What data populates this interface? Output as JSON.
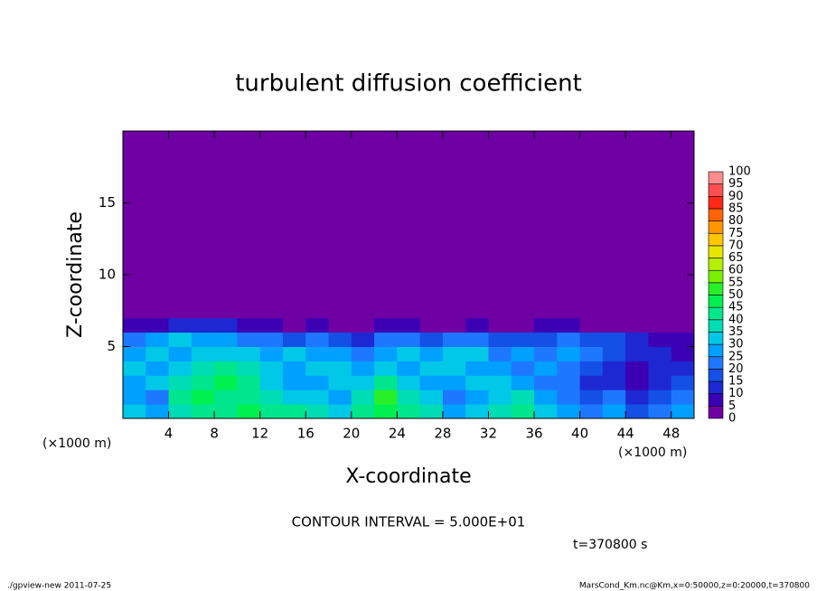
{
  "chart_data": {
    "type": "contour",
    "title": "turbulent diffusion coefficient",
    "x_label": "X-coordinate",
    "y_label": "Z-coordinate",
    "x_unit": "(×1000 m)",
    "y_unit": "(×1000 m)",
    "contour_interval": "CONTOUR INTERVAL = 5.000E+01",
    "time": "t=370800 s",
    "footer_left": "./gpview-new  2011-07-25",
    "footer_right": "MarsCond_Km.nc@Km,x=0:50000,z=0:20000,t=370800",
    "xlim": [
      0,
      50
    ],
    "ylim": [
      0,
      20
    ],
    "xticks": [
      4,
      8,
      12,
      16,
      20,
      24,
      28,
      32,
      36,
      40,
      44,
      48
    ],
    "yticks": [
      5,
      10,
      15
    ],
    "levels": [
      0,
      5,
      10,
      15,
      20,
      25,
      30,
      35,
      40,
      45,
      50,
      55,
      60,
      65,
      70,
      75,
      80,
      85,
      90,
      95,
      100
    ],
    "colors": [
      "#6e00a4",
      "#3c00b4",
      "#1e28d2",
      "#1450e6",
      "#1e78ff",
      "#00a0ff",
      "#00c8e6",
      "#00dcb4",
      "#00e68c",
      "#00f050",
      "#28f028",
      "#78f000",
      "#b4f000",
      "#e6e600",
      "#ffc800",
      "#ff9600",
      "#ff6400",
      "#ff2814",
      "#ff5050",
      "#ff8c8c"
    ],
    "field": [
      [
        30,
        25,
        35,
        40,
        40,
        45,
        40,
        40,
        35,
        30,
        40,
        45,
        40,
        35,
        25,
        30,
        35,
        40,
        30,
        25,
        20,
        25,
        15,
        20,
        25
      ],
      [
        25,
        20,
        40,
        45,
        40,
        40,
        35,
        30,
        30,
        25,
        35,
        50,
        35,
        30,
        20,
        25,
        30,
        35,
        25,
        20,
        15,
        20,
        10,
        15,
        20
      ],
      [
        25,
        30,
        35,
        40,
        45,
        40,
        30,
        25,
        25,
        30,
        30,
        40,
        30,
        25,
        25,
        30,
        30,
        25,
        20,
        20,
        10,
        10,
        5,
        10,
        15
      ],
      [
        30,
        25,
        30,
        35,
        40,
        35,
        30,
        25,
        30,
        30,
        25,
        30,
        25,
        30,
        30,
        25,
        25,
        20,
        25,
        20,
        15,
        10,
        5,
        10,
        10
      ],
      [
        25,
        30,
        25,
        30,
        30,
        30,
        25,
        30,
        25,
        25,
        20,
        25,
        30,
        25,
        30,
        30,
        20,
        25,
        20,
        25,
        20,
        15,
        10,
        10,
        5
      ],
      [
        20,
        25,
        30,
        25,
        25,
        20,
        20,
        15,
        20,
        15,
        10,
        20,
        20,
        15,
        20,
        20,
        15,
        15,
        15,
        20,
        15,
        15,
        10,
        5,
        5
      ],
      [
        5,
        5,
        10,
        10,
        10,
        5,
        5,
        0,
        5,
        0,
        0,
        5,
        5,
        0,
        0,
        5,
        0,
        0,
        5,
        5,
        0,
        0,
        0,
        0,
        0
      ],
      [
        0,
        0,
        0,
        0,
        0,
        0,
        0,
        0,
        0,
        0,
        0,
        0,
        0,
        0,
        0,
        0,
        0,
        0,
        0,
        0,
        0,
        0,
        0,
        0,
        0
      ],
      [
        0,
        0,
        0,
        0,
        0,
        0,
        0,
        0,
        0,
        0,
        0,
        0,
        0,
        0,
        0,
        0,
        0,
        0,
        0,
        0,
        0,
        0,
        0,
        0,
        0
      ],
      [
        0,
        0,
        0,
        0,
        0,
        0,
        0,
        0,
        0,
        0,
        0,
        0,
        0,
        0,
        0,
        0,
        0,
        0,
        0,
        0,
        0,
        0,
        0,
        0,
        0
      ],
      [
        0,
        0,
        0,
        0,
        0,
        0,
        0,
        0,
        0,
        0,
        0,
        0,
        0,
        0,
        0,
        0,
        0,
        0,
        0,
        0,
        0,
        0,
        0,
        0,
        0
      ],
      [
        0,
        0,
        0,
        0,
        0,
        0,
        0,
        0,
        0,
        0,
        0,
        0,
        0,
        0,
        0,
        0,
        0,
        0,
        0,
        0,
        0,
        0,
        0,
        0,
        0
      ],
      [
        0,
        0,
        0,
        0,
        0,
        0,
        0,
        0,
        0,
        0,
        0,
        0,
        0,
        0,
        0,
        0,
        0,
        0,
        0,
        0,
        0,
        0,
        0,
        0,
        0
      ],
      [
        0,
        0,
        0,
        0,
        0,
        0,
        0,
        0,
        0,
        0,
        0,
        0,
        0,
        0,
        0,
        0,
        0,
        0,
        0,
        0,
        0,
        0,
        0,
        0,
        0
      ],
      [
        0,
        0,
        0,
        0,
        0,
        0,
        0,
        0,
        0,
        0,
        0,
        0,
        0,
        0,
        0,
        0,
        0,
        0,
        0,
        0,
        0,
        0,
        0,
        0,
        0
      ],
      [
        0,
        0,
        0,
        0,
        0,
        0,
        0,
        0,
        0,
        0,
        0,
        0,
        0,
        0,
        0,
        0,
        0,
        0,
        0,
        0,
        0,
        0,
        0,
        0,
        0
      ],
      [
        0,
        0,
        0,
        0,
        0,
        0,
        0,
        0,
        0,
        0,
        0,
        0,
        0,
        0,
        0,
        0,
        0,
        0,
        0,
        0,
        0,
        0,
        0,
        0,
        0
      ],
      [
        0,
        0,
        0,
        0,
        0,
        0,
        0,
        0,
        0,
        0,
        0,
        0,
        0,
        0,
        0,
        0,
        0,
        0,
        0,
        0,
        0,
        0,
        0,
        0,
        0
      ],
      [
        0,
        0,
        0,
        0,
        0,
        0,
        0,
        0,
        0,
        0,
        0,
        0,
        0,
        0,
        0,
        0,
        0,
        0,
        0,
        0,
        0,
        0,
        0,
        0,
        0
      ],
      [
        0,
        0,
        0,
        0,
        0,
        0,
        0,
        0,
        0,
        0,
        0,
        0,
        0,
        0,
        0,
        0,
        0,
        0,
        0,
        0,
        0,
        0,
        0,
        0,
        0
      ]
    ]
  }
}
